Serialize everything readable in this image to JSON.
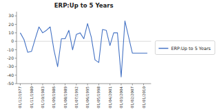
{
  "chart_data": {
    "type": "line",
    "title": "ERP:Up to 5 Years",
    "x": [
      0,
      1,
      2,
      3,
      4,
      5,
      6,
      7,
      8,
      9,
      10,
      11,
      12,
      13,
      14,
      15,
      16,
      17,
      18,
      19,
      20,
      21,
      22,
      23,
      24,
      25,
      26,
      27,
      28,
      29,
      30,
      31,
      32,
      33,
      34
    ],
    "series": [
      {
        "name": "ERP:Up to 5 Years",
        "color": "#4472C4",
        "values": [
          10,
          2,
          -13,
          -12,
          3,
          17,
          10,
          13,
          17,
          -10,
          -30,
          3,
          3,
          13,
          -10,
          8,
          10,
          3,
          21,
          5,
          -22,
          -25,
          14,
          13,
          -5,
          10,
          10,
          -42,
          24,
          5,
          -14,
          -14,
          -14,
          -14,
          -14
        ]
      }
    ],
    "xlim": [
      -1,
      35
    ],
    "xticks": [
      {
        "value": 0,
        "label": "01/12/1977"
      },
      {
        "value": 3,
        "label": "01/11/1980"
      },
      {
        "value": 6,
        "label": "01/10/1983"
      },
      {
        "value": 9,
        "label": "01/09/1986"
      },
      {
        "value": 12,
        "label": "01/08/1989"
      },
      {
        "value": 15,
        "label": "01/07/1992"
      },
      {
        "value": 18,
        "label": "01/06/1995"
      },
      {
        "value": 21,
        "label": "01/05/1998"
      },
      {
        "value": 24,
        "label": "01/04/2001"
      },
      {
        "value": 27,
        "label": "01/03/2004"
      },
      {
        "value": 30,
        "label": "01/02/2007"
      },
      {
        "value": 33,
        "label": "01/01/2010"
      }
    ],
    "ylim": [
      -50,
      35
    ],
    "yticks": [
      -50,
      -40,
      -30,
      -20,
      -10,
      0,
      10,
      20,
      30
    ],
    "grid": false,
    "legend": "right"
  }
}
